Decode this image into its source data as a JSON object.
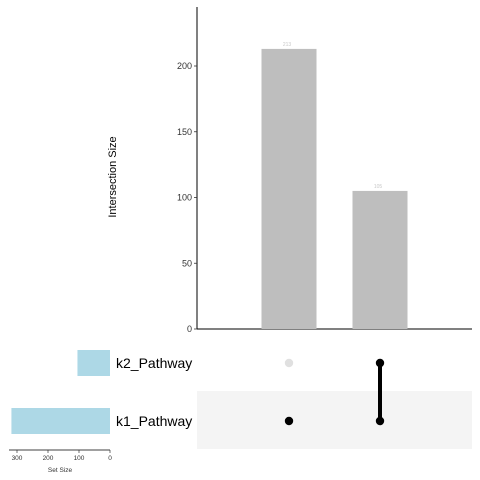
{
  "chart_data": {
    "type": "bar",
    "subtype": "upset",
    "ylabel": "Intersection Size",
    "ylim": [
      0,
      240
    ],
    "yticks": [
      0,
      50,
      100,
      150,
      200
    ],
    "intersections": [
      {
        "sets": [
          "k1_Pathway"
        ],
        "value": 213,
        "label": "213"
      },
      {
        "sets": [
          "k1_Pathway",
          "k2_Pathway"
        ],
        "value": 105,
        "label": "105"
      }
    ],
    "sets": [
      {
        "name": "k2_Pathway",
        "size": 105
      },
      {
        "name": "k1_Pathway",
        "size": 318
      }
    ],
    "set_size_label": "Set Size",
    "set_size_ticks": [
      300,
      200,
      100,
      0
    ],
    "set_size_max": 300,
    "colors": {
      "intersection_bar": "#bebebe",
      "set_bar": "#add8e6",
      "dot_active": "#000000",
      "dot_inactive": "#e0e0e0",
      "stripe": "#f4f4f4"
    }
  }
}
